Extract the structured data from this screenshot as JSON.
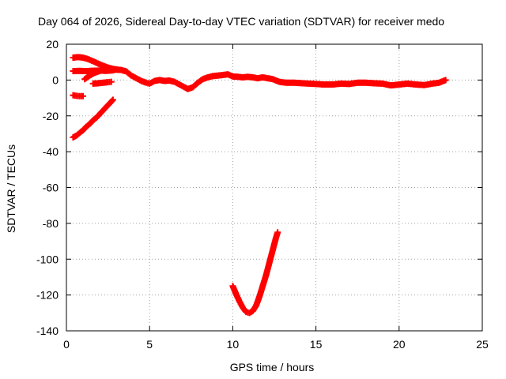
{
  "chart_data": {
    "type": "scatter",
    "title": "Day 064 of 2026, Sidereal Day-to-day VTEC variation (SDTVAR) for receiver medo",
    "xlabel": "GPS time / hours",
    "ylabel": "SDTVAR / TECUs",
    "xlim": [
      0,
      25
    ],
    "ylim": [
      -140,
      20
    ],
    "xticks": [
      0,
      5,
      10,
      15,
      20,
      25
    ],
    "yticks": [
      -140,
      -120,
      -100,
      -80,
      -60,
      -40,
      -20,
      0,
      20
    ],
    "xtick_labels": [
      "0",
      "5",
      "10",
      "15",
      "20",
      "25"
    ],
    "ytick_labels": [
      "-140",
      "-120",
      "-100",
      "-80",
      "-60",
      "-40",
      "-20",
      "0",
      "20"
    ],
    "grid": true,
    "marker": "plus",
    "series_color": "#ff0000",
    "series": [
      {
        "name": "upper arc",
        "points": [
          [
            0.4,
            12.5
          ],
          [
            0.7,
            12.8
          ],
          [
            1.0,
            12.5
          ],
          [
            1.3,
            11.7
          ],
          [
            1.6,
            10.5
          ],
          [
            1.9,
            9.2
          ],
          [
            2.2,
            8.0
          ],
          [
            2.5,
            7.0
          ],
          [
            2.8,
            6.2
          ],
          [
            3.1,
            5.8
          ]
        ]
      },
      {
        "name": "main trace",
        "points": [
          [
            0.4,
            5.0
          ],
          [
            0.8,
            5.1
          ],
          [
            1.2,
            5.0
          ],
          [
            1.6,
            5.2
          ],
          [
            2.0,
            5.3
          ],
          [
            2.4,
            5.1
          ],
          [
            2.8,
            5.4
          ],
          [
            3.0,
            5.8
          ],
          [
            3.3,
            5.6
          ],
          [
            3.6,
            4.8
          ],
          [
            3.9,
            2.5
          ],
          [
            4.2,
            1.0
          ],
          [
            4.5,
            -0.5
          ],
          [
            4.8,
            -1.5
          ],
          [
            5.0,
            -2.0
          ],
          [
            5.3,
            -0.5
          ],
          [
            5.6,
            0.0
          ],
          [
            5.9,
            -0.5
          ],
          [
            6.2,
            -0.3
          ],
          [
            6.5,
            -1.0
          ],
          [
            6.8,
            -2.5
          ],
          [
            7.1,
            -4.0
          ],
          [
            7.3,
            -5.0
          ],
          [
            7.6,
            -4.0
          ],
          [
            7.9,
            -1.5
          ],
          [
            8.2,
            0.5
          ],
          [
            8.5,
            1.5
          ],
          [
            8.8,
            2.2
          ],
          [
            9.1,
            2.5
          ],
          [
            9.4,
            2.8
          ],
          [
            9.7,
            3.2
          ],
          [
            10.0,
            2.0
          ],
          [
            10.3,
            1.8
          ],
          [
            10.6,
            1.5
          ],
          [
            10.9,
            1.8
          ],
          [
            11.2,
            1.5
          ],
          [
            11.5,
            1.0
          ],
          [
            11.8,
            1.5
          ],
          [
            12.1,
            1.0
          ],
          [
            12.4,
            0.5
          ],
          [
            12.8,
            -1.0
          ],
          [
            13.2,
            -1.5
          ],
          [
            13.7,
            -1.5
          ],
          [
            14.2,
            -1.8
          ],
          [
            14.6,
            -2.0
          ],
          [
            15.0,
            -2.2
          ],
          [
            15.5,
            -2.5
          ],
          [
            16.0,
            -2.5
          ],
          [
            16.5,
            -2.0
          ],
          [
            17.0,
            -2.2
          ],
          [
            17.5,
            -1.5
          ],
          [
            18.0,
            -1.5
          ],
          [
            18.5,
            -1.8
          ],
          [
            19.0,
            -2.0
          ],
          [
            19.5,
            -3.0
          ],
          [
            20.0,
            -2.5
          ],
          [
            20.5,
            -2.0
          ],
          [
            21.0,
            -2.5
          ],
          [
            21.5,
            -2.8
          ],
          [
            22.0,
            -2.0
          ],
          [
            22.4,
            -1.5
          ],
          [
            22.8,
            0.0
          ]
        ]
      },
      {
        "name": "short rising segment",
        "points": [
          [
            1.1,
            0.5
          ],
          [
            1.4,
            2.5
          ],
          [
            1.7,
            4.0
          ],
          [
            2.0,
            5.0
          ]
        ]
      },
      {
        "name": "small segment",
        "points": [
          [
            1.6,
            -2.0
          ],
          [
            1.9,
            -1.8
          ],
          [
            2.2,
            -1.5
          ],
          [
            2.5,
            -1.2
          ],
          [
            2.7,
            -1.0
          ]
        ]
      },
      {
        "name": "short low segment",
        "points": [
          [
            0.4,
            -8.5
          ],
          [
            0.6,
            -8.8
          ],
          [
            0.8,
            -9.0
          ],
          [
            1.0,
            -9.0
          ]
        ]
      },
      {
        "name": "rising line",
        "points": [
          [
            0.4,
            -32.0
          ],
          [
            0.6,
            -31.0
          ],
          [
            0.8,
            -29.5
          ],
          [
            1.0,
            -28.0
          ],
          [
            1.2,
            -26.0
          ],
          [
            1.4,
            -24.5
          ],
          [
            1.6,
            -22.5
          ],
          [
            1.8,
            -21.0
          ],
          [
            2.0,
            -19.0
          ],
          [
            2.2,
            -17.0
          ],
          [
            2.4,
            -15.0
          ],
          [
            2.6,
            -13.0
          ],
          [
            2.8,
            -11.0
          ]
        ]
      },
      {
        "name": "deep dip",
        "points": [
          [
            10.0,
            -115.0
          ],
          [
            10.2,
            -119.5
          ],
          [
            10.4,
            -123.5
          ],
          [
            10.6,
            -127.0
          ],
          [
            10.8,
            -129.5
          ],
          [
            11.0,
            -130.0
          ],
          [
            11.2,
            -129.0
          ],
          [
            11.4,
            -126.0
          ],
          [
            11.6,
            -121.0
          ],
          [
            11.8,
            -115.0
          ],
          [
            12.0,
            -109.0
          ],
          [
            12.2,
            -102.0
          ],
          [
            12.4,
            -95.0
          ],
          [
            12.6,
            -88.0
          ],
          [
            12.7,
            -85.0
          ]
        ]
      }
    ]
  }
}
